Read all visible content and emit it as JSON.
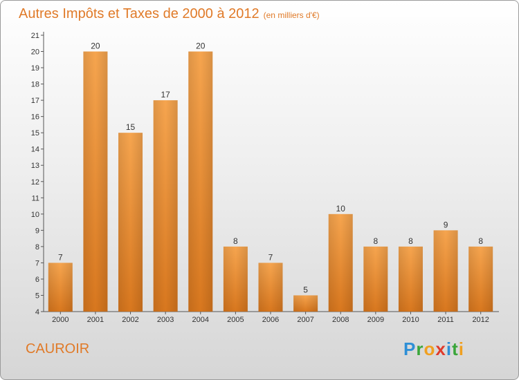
{
  "title": {
    "main": "Autres Impôts et Taxes de 2000 à 2012",
    "unit": "(en milliers d'€)"
  },
  "commune": "CAUROIR",
  "logo": {
    "letters": [
      {
        "ch": "P",
        "color": "#2e8fd6"
      },
      {
        "ch": "r",
        "color": "#3aa63a"
      },
      {
        "ch": "o",
        "color": "#f0a020"
      },
      {
        "ch": "x",
        "color": "#e03a2a"
      },
      {
        "ch": "i",
        "color": "#2e8fd6"
      },
      {
        "ch": "t",
        "color": "#3aa63a"
      },
      {
        "ch": "i",
        "color": "#f0a020"
      }
    ]
  },
  "colors": {
    "bar_top": "#f6a54f",
    "bar_bottom": "#d8771e",
    "title": "#e07a28"
  },
  "chart_data": {
    "type": "bar",
    "title": "Autres Impôts et Taxes de 2000 à 2012",
    "xlabel": "",
    "ylabel": "",
    "ylim": [
      4,
      21
    ],
    "yticks": [
      4,
      5,
      6,
      7,
      8,
      9,
      10,
      11,
      12,
      13,
      14,
      15,
      16,
      17,
      18,
      19,
      20,
      21
    ],
    "grid": false,
    "categories": [
      "2000",
      "2001",
      "2002",
      "2003",
      "2004",
      "2005",
      "2006",
      "2007",
      "2008",
      "2009",
      "2010",
      "2011",
      "2012"
    ],
    "values": [
      7,
      20,
      15,
      17,
      20,
      8,
      7,
      5,
      10,
      8,
      8,
      9,
      8
    ]
  }
}
